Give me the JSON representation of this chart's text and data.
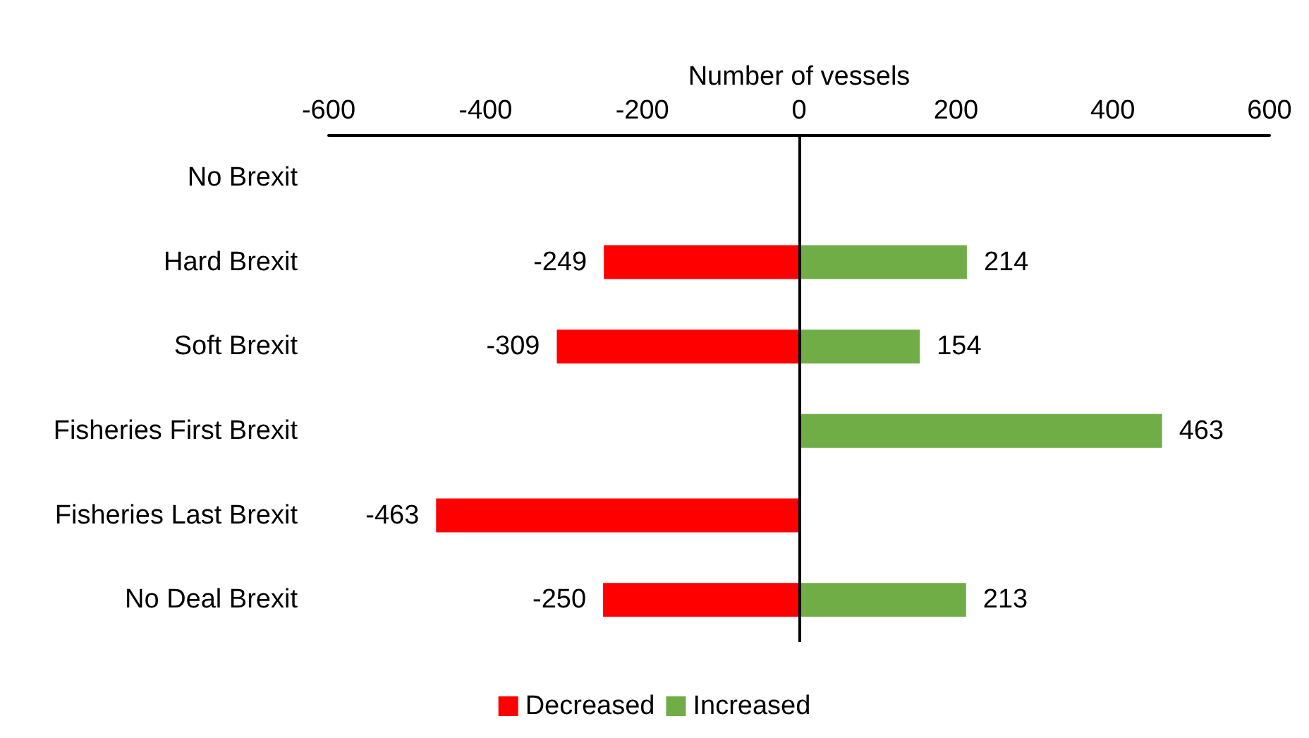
{
  "chart_data": {
    "type": "bar",
    "stacked": true,
    "orientation": "horizontal",
    "xlabel": "Number of vessels",
    "categories": [
      "No Brexit",
      "Hard Brexit",
      "Soft Brexit",
      "Fisheries First Brexit",
      "Fisheries Last Brexit",
      "No Deal Brexit"
    ],
    "series": [
      {
        "name": "Decreased",
        "color": "#ff0000",
        "values": [
          null,
          -249,
          -309,
          null,
          -463,
          -250
        ]
      },
      {
        "name": "Increased",
        "color": "#70ad47",
        "values": [
          null,
          214,
          154,
          463,
          null,
          213
        ]
      }
    ],
    "xlim": [
      -600,
      600
    ],
    "xticks": [
      -600,
      -400,
      -200,
      0,
      200,
      400,
      600
    ],
    "ref_lines": [
      {
        "axis": "x",
        "value": 0
      }
    ],
    "data_labels": true,
    "grid": false,
    "legend": "bottom"
  }
}
